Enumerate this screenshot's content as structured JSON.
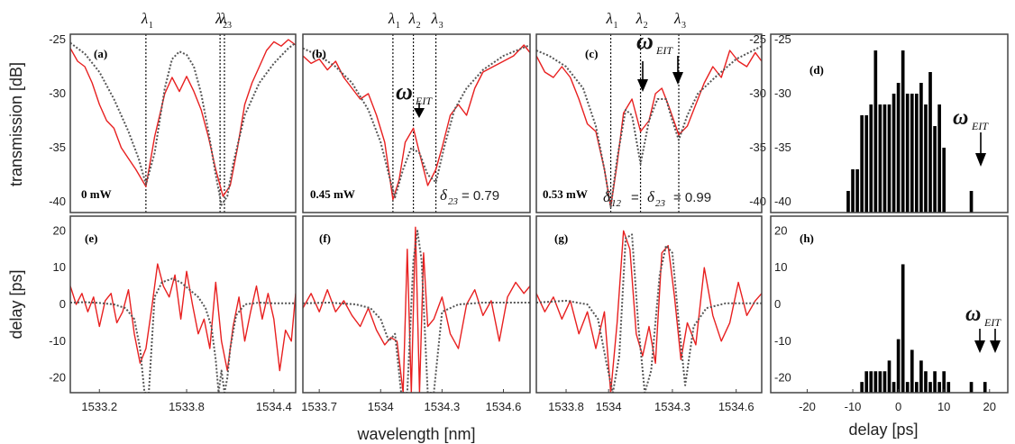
{
  "figure": {
    "ylabel_top": "transmission [dB]",
    "ylabel_bottom": "delay [ps]",
    "xlabel_main": "wavelength [nm]",
    "xlabel_hist": "delay [ps]",
    "lambda_labels": [
      "λ1",
      "λ2",
      "λ3"
    ],
    "omega": "ω",
    "omega_sub": "EIT",
    "delta": "δ",
    "panels": {
      "a": {
        "label": "(a)",
        "power": "0 mW"
      },
      "b": {
        "label": "(b)",
        "power": "0.45 mW",
        "delta_sub": "23",
        "delta_text": "= 0.79"
      },
      "c": {
        "label": "(c)",
        "power": "0.53 mW",
        "delta_sub1": "12",
        "delta_sub2": "23",
        "delta_eq": "=",
        "delta_text": "= 0.99"
      },
      "d": {
        "label": "(d)"
      },
      "e": {
        "label": "(e)"
      },
      "f": {
        "label": "(f)"
      },
      "g": {
        "label": "(g)"
      },
      "h": {
        "label": "(h)"
      }
    }
  },
  "chart_data": [
    {
      "panel": "a",
      "type": "line",
      "xlim": [
        1533.0,
        1534.55
      ],
      "ylim": [
        -41,
        -24.5
      ],
      "xticks": [],
      "yticks": [
        "-25",
        "-30",
        "-35",
        "-40"
      ],
      "lambda_positions": [
        1533.52,
        1534.03,
        1534.06
      ],
      "series": [
        {
          "color": "#e82020",
          "style": "solid",
          "x": [
            1533.0,
            1533.05,
            1533.1,
            1533.15,
            1533.2,
            1533.25,
            1533.3,
            1533.35,
            1533.4,
            1533.45,
            1533.52,
            1533.58,
            1533.65,
            1533.7,
            1533.75,
            1533.8,
            1533.85,
            1533.9,
            1533.95,
            1534.0,
            1534.05,
            1534.1,
            1534.15,
            1534.2,
            1534.25,
            1534.3,
            1534.35,
            1534.4,
            1534.45,
            1534.5,
            1534.55
          ],
          "y": [
            -25.8,
            -27,
            -27.5,
            -29,
            -31,
            -32.5,
            -33.2,
            -35,
            -36,
            -37,
            -38.6,
            -34,
            -30,
            -28.5,
            -29.8,
            -28.4,
            -29.8,
            -31.5,
            -34,
            -37,
            -39.5,
            -38.5,
            -35,
            -31,
            -29,
            -27.5,
            -26,
            -25.2,
            -25.6,
            -25,
            -25.5
          ]
        },
        {
          "color": "#555555",
          "style": "dotted",
          "x": [
            1533.0,
            1533.1,
            1533.2,
            1533.3,
            1533.4,
            1533.47,
            1533.52,
            1533.58,
            1533.65,
            1533.7,
            1533.75,
            1533.8,
            1533.85,
            1533.9,
            1533.95,
            1534.0,
            1534.04,
            1534.08,
            1534.12,
            1534.2,
            1534.3,
            1534.4,
            1534.5,
            1534.55
          ],
          "y": [
            -25.3,
            -26.3,
            -28,
            -30.5,
            -33.5,
            -36,
            -38.4,
            -35.5,
            -29.5,
            -26.8,
            -26.1,
            -26.4,
            -27.5,
            -30,
            -33.5,
            -37.5,
            -40.3,
            -39.5,
            -36.5,
            -32,
            -29,
            -27.2,
            -25.8,
            -25.3
          ]
        }
      ]
    },
    {
      "panel": "b",
      "type": "line",
      "xlim": [
        1533.62,
        1534.73
      ],
      "ylim": [
        -41,
        -24.5
      ],
      "xticks": [],
      "yticks": [],
      "lambda_positions": [
        1534.06,
        1534.16,
        1534.27
      ],
      "series": [
        {
          "color": "#e82020",
          "style": "solid",
          "x": [
            1533.62,
            1533.66,
            1533.7,
            1533.74,
            1533.78,
            1533.82,
            1533.86,
            1533.9,
            1533.94,
            1533.98,
            1534.02,
            1534.06,
            1534.09,
            1534.12,
            1534.16,
            1534.19,
            1534.23,
            1534.27,
            1534.3,
            1534.34,
            1534.38,
            1534.42,
            1534.46,
            1534.5,
            1534.55,
            1534.6,
            1534.65,
            1534.7,
            1534.73
          ],
          "y": [
            -26.5,
            -27.2,
            -26.8,
            -27.8,
            -27,
            -28.5,
            -29.5,
            -30.5,
            -30,
            -32,
            -34.5,
            -39.8,
            -38,
            -34.5,
            -33.2,
            -35.5,
            -38.5,
            -37,
            -35,
            -32,
            -31,
            -32,
            -29.5,
            -28,
            -27.5,
            -27,
            -26.5,
            -25.5,
            -26.2
          ]
        },
        {
          "color": "#555555",
          "style": "dotted",
          "x": [
            1533.62,
            1533.7,
            1533.78,
            1533.86,
            1533.94,
            1534.0,
            1534.04,
            1534.07,
            1534.11,
            1534.15,
            1534.19,
            1534.23,
            1534.27,
            1534.31,
            1534.36,
            1534.42,
            1534.5,
            1534.6,
            1534.73
          ],
          "y": [
            -25.8,
            -26.5,
            -27.5,
            -29,
            -31.5,
            -34.5,
            -37.5,
            -39.6,
            -37,
            -35,
            -35.5,
            -37.5,
            -38.2,
            -35,
            -31.5,
            -29.5,
            -27.8,
            -26.5,
            -25.5
          ]
        }
      ]
    },
    {
      "panel": "c",
      "type": "line",
      "xlim": [
        1533.66,
        1534.72
      ],
      "ylim": [
        -41,
        -24.5
      ],
      "xticks": [],
      "yticks": [],
      "lambda_positions": [
        1534.01,
        1534.15,
        1534.33
      ],
      "series": [
        {
          "color": "#e82020",
          "style": "solid",
          "x": [
            1533.66,
            1533.7,
            1533.74,
            1533.78,
            1533.82,
            1533.86,
            1533.9,
            1533.94,
            1533.98,
            1534.01,
            1534.04,
            1534.07,
            1534.11,
            1534.15,
            1534.19,
            1534.22,
            1534.25,
            1534.28,
            1534.33,
            1534.37,
            1534.41,
            1534.45,
            1534.49,
            1534.53,
            1534.57,
            1534.61,
            1534.65,
            1534.69,
            1534.72
          ],
          "y": [
            -26.5,
            -28,
            -28.5,
            -27.5,
            -28.5,
            -30.5,
            -32.8,
            -33.5,
            -37,
            -40.5,
            -36.5,
            -31.8,
            -30.5,
            -33.5,
            -32.5,
            -30,
            -29.5,
            -31,
            -33.8,
            -33,
            -31,
            -29,
            -27.5,
            -28.5,
            -26,
            -27,
            -27.5,
            -26.2,
            -27
          ]
        },
        {
          "color": "#555555",
          "style": "dotted",
          "x": [
            1533.66,
            1533.72,
            1533.8,
            1533.88,
            1533.94,
            1533.98,
            1534.01,
            1534.04,
            1534.08,
            1534.11,
            1534.15,
            1534.19,
            1534.23,
            1534.27,
            1534.3,
            1534.33,
            1534.37,
            1534.42,
            1534.5,
            1534.6,
            1534.72
          ],
          "y": [
            -26,
            -26.5,
            -27.5,
            -29.5,
            -33,
            -37,
            -40.5,
            -36,
            -31.5,
            -32,
            -36.5,
            -32.5,
            -30.5,
            -30.5,
            -32.5,
            -34.3,
            -32,
            -30,
            -28.5,
            -26.8,
            -25.6
          ]
        }
      ]
    },
    {
      "panel": "d",
      "type": "bar",
      "orientation": "horizontal-axis-delay",
      "xlim": [
        -28,
        24
      ],
      "ylim": [
        -41,
        -24.5
      ],
      "bin_width": 1,
      "yticks": [
        "-25",
        "-30",
        "-35",
        "-40"
      ],
      "bins": [
        -11,
        -10,
        -9,
        -8,
        -7,
        -6,
        -5,
        -4,
        -3,
        -2,
        -1,
        0,
        1,
        2,
        3,
        4,
        5,
        6,
        7,
        8,
        9,
        10,
        16
      ],
      "counts": [
        2,
        4,
        4,
        9,
        9,
        10,
        15,
        10,
        10,
        10,
        11,
        12,
        15,
        11,
        11,
        11,
        12,
        10,
        13,
        8,
        10,
        6,
        2
      ]
    },
    {
      "panel": "e",
      "type": "line",
      "xlim": [
        1533.0,
        1534.55
      ],
      "ylim": [
        -24,
        24
      ],
      "xticks": [
        "1533.2",
        "1533.8",
        "1534.4"
      ],
      "yticks": [
        "20",
        "10",
        "0",
        "-10",
        "-20"
      ],
      "series": [
        {
          "color": "#e82020",
          "style": "solid",
          "x": [
            1533.0,
            1533.04,
            1533.08,
            1533.12,
            1533.16,
            1533.2,
            1533.24,
            1533.28,
            1533.32,
            1533.36,
            1533.4,
            1533.44,
            1533.48,
            1533.52,
            1533.56,
            1533.6,
            1533.64,
            1533.68,
            1533.72,
            1533.76,
            1533.8,
            1533.84,
            1533.88,
            1533.92,
            1533.96,
            1534.0,
            1534.04,
            1534.08,
            1534.12,
            1534.16,
            1534.2,
            1534.24,
            1534.28,
            1534.32,
            1534.36,
            1534.4,
            1534.44,
            1534.48,
            1534.52,
            1534.55
          ],
          "y": [
            5,
            0,
            3,
            -2,
            2,
            -6,
            1,
            3,
            -5,
            -2,
            4,
            -8,
            -16,
            -12,
            -1,
            11,
            5,
            2,
            8,
            -4,
            9,
            0,
            -8,
            -4,
            -12,
            6,
            -10,
            -18,
            -6,
            2,
            -10,
            -2,
            5,
            -4,
            3,
            -4,
            -18,
            -7,
            -10,
            3
          ]
        },
        {
          "color": "#555555",
          "style": "dotted",
          "x": [
            1533.0,
            1533.1,
            1533.2,
            1533.3,
            1533.38,
            1533.44,
            1533.48,
            1533.51,
            1533.54,
            1533.58,
            1533.63,
            1533.7,
            1533.76,
            1533.82,
            1533.88,
            1533.93,
            1533.97,
            1534.0,
            1534.02,
            1534.04,
            1534.06,
            1534.08,
            1534.1,
            1534.14,
            1534.2,
            1534.3,
            1534.4,
            1534.55
          ],
          "y": [
            0.5,
            0.6,
            0.4,
            0,
            -1,
            -4,
            -12,
            -24,
            -24,
            2,
            6,
            7,
            6,
            4,
            2,
            -1,
            -6,
            -15,
            -24,
            -18,
            -24,
            -20,
            -12,
            -3,
            0,
            0.5,
            0.3,
            0.3
          ]
        }
      ]
    },
    {
      "panel": "f",
      "type": "line",
      "xlim": [
        1533.62,
        1534.73
      ],
      "ylim": [
        -24,
        24
      ],
      "xticks": [
        "1533.7",
        "1534",
        "1534.3",
        "1534.6"
      ],
      "yticks": [],
      "series": [
        {
          "color": "#e82020",
          "style": "solid",
          "x": [
            1533.62,
            1533.66,
            1533.7,
            1533.74,
            1533.78,
            1533.82,
            1533.86,
            1533.9,
            1533.94,
            1533.98,
            1534.02,
            1534.05,
            1534.08,
            1534.11,
            1534.13,
            1534.15,
            1534.17,
            1534.19,
            1534.21,
            1534.23,
            1534.26,
            1534.3,
            1534.34,
            1534.38,
            1534.42,
            1534.46,
            1534.5,
            1534.54,
            1534.58,
            1534.62,
            1534.66,
            1534.7,
            1534.73
          ],
          "y": [
            -1,
            3,
            -2,
            4,
            -2,
            1,
            -3,
            -6,
            -1,
            -7,
            -11,
            -9,
            -10,
            -24,
            15,
            -24,
            21,
            -24,
            14,
            -6,
            -4,
            2,
            -8,
            -12,
            0,
            4,
            -3,
            1,
            -10,
            2,
            6,
            3,
            5
          ]
        },
        {
          "color": "#555555",
          "style": "dotted",
          "x": [
            1533.62,
            1533.75,
            1533.88,
            1533.95,
            1534.0,
            1534.04,
            1534.07,
            1534.1,
            1534.13,
            1534.16,
            1534.18,
            1534.2,
            1534.23,
            1534.26,
            1534.3,
            1534.38,
            1534.5,
            1534.73
          ],
          "y": [
            0.3,
            0.5,
            0,
            -1,
            -4,
            -10,
            -8,
            -24,
            -24,
            12,
            20,
            12,
            -24,
            -24,
            -2,
            0,
            0.5,
            0.5
          ]
        }
      ]
    },
    {
      "panel": "g",
      "type": "line",
      "xlim": [
        1533.66,
        1534.72
      ],
      "ylim": [
        -24,
        24
      ],
      "xticks": [
        "1533.8",
        "1534",
        "1534.3",
        "1534.6"
      ],
      "yticks": [],
      "series": [
        {
          "color": "#e82020",
          "style": "solid",
          "x": [
            1533.66,
            1533.7,
            1533.74,
            1533.78,
            1533.82,
            1533.86,
            1533.9,
            1533.94,
            1533.98,
            1534.01,
            1534.04,
            1534.07,
            1534.1,
            1534.13,
            1534.16,
            1534.19,
            1534.22,
            1534.25,
            1534.28,
            1534.31,
            1534.34,
            1534.37,
            1534.41,
            1534.45,
            1534.49,
            1534.53,
            1534.57,
            1534.61,
            1534.65,
            1534.69,
            1534.72
          ],
          "y": [
            3,
            -2,
            2,
            -4,
            1,
            -8,
            -2,
            -12,
            -2,
            -24,
            -5,
            20,
            15,
            -8,
            -14,
            -6,
            -16,
            14,
            16,
            2,
            -15,
            -5,
            -11,
            10,
            -3,
            -10,
            -5,
            6,
            -3,
            1,
            3
          ]
        },
        {
          "color": "#555555",
          "style": "dotted",
          "x": [
            1533.66,
            1533.8,
            1533.9,
            1533.95,
            1533.99,
            1534.02,
            1534.05,
            1534.08,
            1534.11,
            1534.14,
            1534.17,
            1534.2,
            1534.24,
            1534.27,
            1534.3,
            1534.33,
            1534.36,
            1534.4,
            1534.46,
            1534.55,
            1534.72
          ],
          "y": [
            0.5,
            1,
            0,
            -4,
            -16,
            -24,
            -14,
            18,
            19,
            -6,
            -24,
            -18,
            8,
            16,
            14,
            -5,
            -22,
            -6,
            -1,
            0.3,
            0.3
          ]
        }
      ]
    },
    {
      "panel": "h",
      "type": "bar",
      "xlim": [
        -28,
        24
      ],
      "ylim": [
        -24,
        24
      ],
      "bin_width": 1,
      "xticks": [
        "-20",
        "-10",
        "0",
        "10",
        "20"
      ],
      "yticks": [],
      "bins": [
        -8,
        -7,
        -6,
        -5,
        -4,
        -3,
        -2,
        -1,
        0,
        1,
        2,
        3,
        4,
        5,
        6,
        7,
        8,
        9,
        10,
        11,
        16,
        19
      ],
      "counts": [
        1,
        2,
        2,
        2,
        2,
        2,
        3,
        1,
        5,
        12,
        1,
        4,
        1,
        3,
        2,
        1,
        2,
        1,
        2,
        1,
        1,
        1
      ]
    }
  ]
}
